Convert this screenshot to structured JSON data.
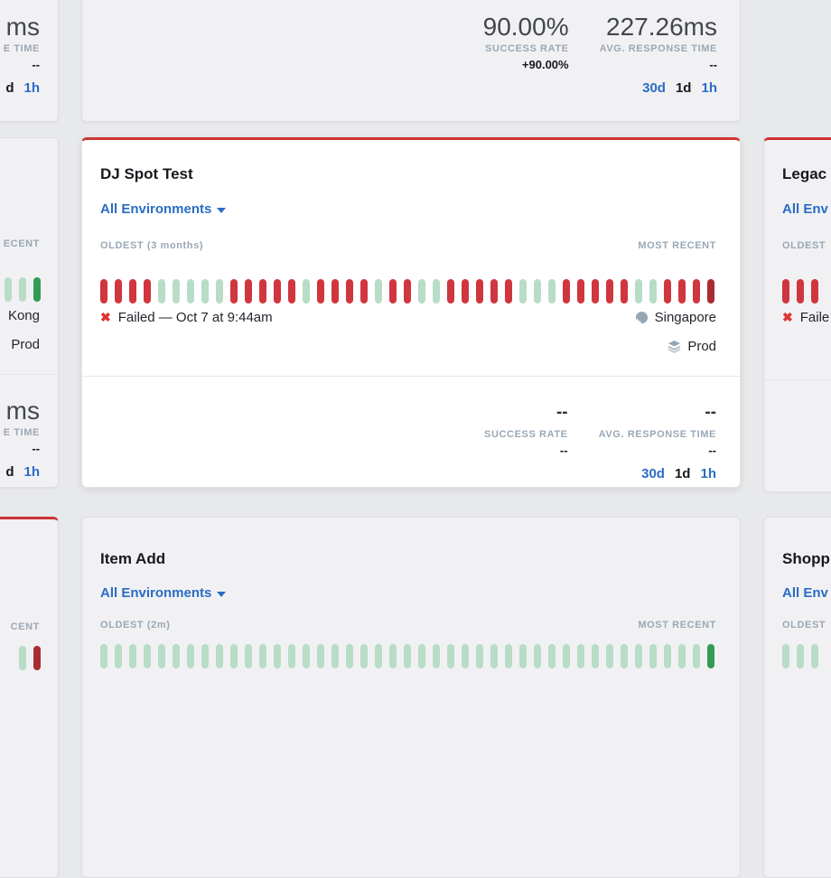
{
  "colors": {
    "page_bg": "#e8e9eb",
    "card_bg": "#f1f1f3",
    "card_active_bg": "#ffffff",
    "fail_border": "#cb3434",
    "bar_pass": "#b9dcc6",
    "bar_pass_recent": "#319c52",
    "bar_fail": "#d0363e",
    "bar_fail_recent": "#a92c32",
    "link_blue": "#2a6cc5",
    "label_gray": "#9aa8b6"
  },
  "icons": {
    "failed_x": "✖"
  },
  "top_left_card": {
    "value_fragment": "ms",
    "label_fragment": "E TIME",
    "delta": "--",
    "range_selected_fragment": "d",
    "range_h1": "1h"
  },
  "top_center_card": {
    "success_value": "90.00%",
    "success_label": "SUCCESS RATE",
    "success_delta": "+90.00%",
    "response_value": "227.26ms",
    "response_label": "AVG. RESPONSE TIME",
    "response_delta": "--",
    "range_30d": "30d",
    "range_1d": "1d",
    "range_1h": "1h"
  },
  "mid_left_card": {
    "most_recent_fragment": "ECENT",
    "bars": [
      "pass",
      "pass",
      "pass-recent"
    ],
    "location_fragment": "Kong",
    "environment_fragment": "Prod",
    "value_fragment": "ms",
    "label_fragment": "E TIME",
    "delta": "--",
    "range_selected_fragment": "d",
    "range_h1": "1h"
  },
  "dj_spot_card": {
    "title": "DJ Spot Test",
    "environments": "All Environments",
    "oldest_label": "OLDEST (3 months)",
    "most_recent_label": "MOST RECENT",
    "bars": [
      "fail",
      "fail",
      "fail",
      "fail",
      "pass",
      "pass",
      "pass",
      "pass",
      "pass",
      "fail",
      "fail",
      "fail",
      "fail",
      "fail",
      "pass",
      "fail",
      "fail",
      "fail",
      "fail",
      "pass",
      "fail",
      "fail",
      "pass",
      "pass",
      "fail",
      "fail",
      "fail",
      "fail",
      "fail",
      "pass",
      "pass",
      "pass",
      "fail",
      "fail",
      "fail",
      "fail",
      "fail",
      "pass",
      "pass",
      "fail",
      "fail",
      "fail",
      "fail-recent"
    ],
    "status_text": "Failed — Oct 7 at 9:44am",
    "location": "Singapore",
    "environment": "Prod",
    "success_value": "--",
    "success_label": "SUCCESS RATE",
    "success_delta": "--",
    "response_value": "--",
    "response_label": "AVG. RESPONSE TIME",
    "response_delta": "--",
    "range_30d": "30d",
    "range_1d": "1d",
    "range_1h": "1h"
  },
  "mid_right_card": {
    "title_fragment": "Legac",
    "environments_fragment": "All Env",
    "oldest_fragment": "OLDEST",
    "bars": [
      "fail",
      "fail",
      "fail"
    ],
    "status_fragment": "Faile"
  },
  "bottom_left_card": {
    "most_recent_fragment": "CENT",
    "bars": [
      "pass",
      "fail-recent"
    ]
  },
  "item_add_card": {
    "title": "Item Add",
    "environments": "All Environments",
    "oldest_label": "OLDEST (2m)",
    "most_recent_label": "MOST RECENT",
    "bars": [
      "pass",
      "pass",
      "pass",
      "pass",
      "pass",
      "pass",
      "pass",
      "pass",
      "pass",
      "pass",
      "pass",
      "pass",
      "pass",
      "pass",
      "pass",
      "pass",
      "pass",
      "pass",
      "pass",
      "pass",
      "pass",
      "pass",
      "pass",
      "pass",
      "pass",
      "pass",
      "pass",
      "pass",
      "pass",
      "pass",
      "pass",
      "pass",
      "pass",
      "pass",
      "pass",
      "pass",
      "pass",
      "pass",
      "pass",
      "pass",
      "pass",
      "pass",
      "pass-recent"
    ]
  },
  "bottom_right_card": {
    "title_fragment": "Shopp",
    "environments_fragment": "All Env",
    "oldest_fragment": "OLDEST",
    "bars": [
      "pass",
      "pass",
      "pass"
    ]
  }
}
